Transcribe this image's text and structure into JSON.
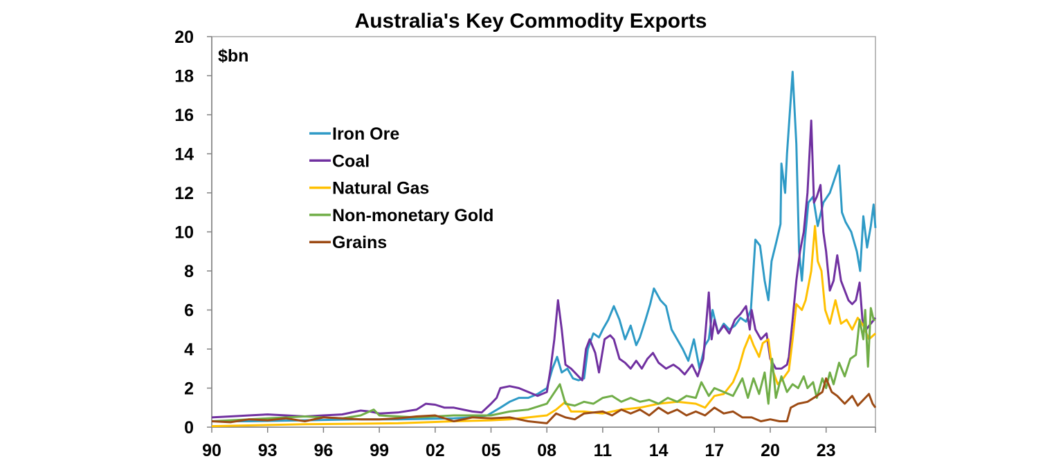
{
  "chart_data": {
    "type": "line",
    "title": "Australia's Key Commodity Exports",
    "ylabel": "$bn",
    "xlabel": "",
    "xlim": [
      1990,
      2025.65
    ],
    "ylim": [
      0,
      20
    ],
    "yticks": [
      0,
      2,
      4,
      6,
      8,
      10,
      12,
      14,
      16,
      18,
      20
    ],
    "xticks": [
      1990,
      1993,
      1996,
      1999,
      2002,
      2005,
      2008,
      2011,
      2014,
      2017,
      2020,
      2023
    ],
    "xtick_labels": [
      "90",
      "93",
      "96",
      "99",
      "02",
      "05",
      "08",
      "11",
      "14",
      "17",
      "20",
      "23"
    ],
    "grid": false,
    "legend_position": "upper-left",
    "series": [
      {
        "name": "Iron Ore",
        "color": "#2E9AC6",
        "x": [
          1990,
          1992,
          1995,
          1998,
          2000,
          2003,
          2004,
          2004.8,
          2005.5,
          2006,
          2006.5,
          2007,
          2007.5,
          2008,
          2008.3,
          2008.55,
          2008.8,
          2009.1,
          2009.4,
          2009.7,
          2010,
          2010.2,
          2010.5,
          2010.8,
          2011,
          2011.3,
          2011.6,
          2011.9,
          2012.2,
          2012.5,
          2012.8,
          2013,
          2013.3,
          2013.55,
          2013.75,
          2014.1,
          2014.4,
          2014.7,
          2015,
          2015.3,
          2015.6,
          2015.9,
          2016.2,
          2016.5,
          2016.7,
          2016.9,
          2017.2,
          2017.5,
          2017.8,
          2018.1,
          2018.4,
          2018.7,
          2018.96,
          2019.2,
          2019.45,
          2019.7,
          2019.9,
          2020.07,
          2020.33,
          2020.55,
          2020.6,
          2020.8,
          2020.9,
          2021.2,
          2021.4,
          2021.55,
          2021.7,
          2021.85,
          2022.05,
          2022.3,
          2022.55,
          2022.85,
          2023.2,
          2023.7,
          2023.85,
          2024.05,
          2024.35,
          2024.65,
          2024.83,
          2025.0,
          2025.2,
          2025.4,
          2025.55,
          2025.65
        ],
        "y": [
          0.3,
          0.3,
          0.35,
          0.4,
          0.4,
          0.45,
          0.5,
          0.6,
          1.0,
          1.3,
          1.5,
          1.5,
          1.7,
          2.0,
          3.0,
          3.6,
          2.8,
          3.0,
          2.5,
          2.4,
          2.5,
          4.0,
          4.8,
          4.6,
          5.0,
          5.5,
          6.2,
          5.5,
          4.5,
          5.2,
          4.2,
          4.6,
          5.5,
          6.3,
          7.1,
          6.5,
          6.2,
          5.0,
          4.5,
          4.0,
          3.4,
          4.5,
          3.0,
          4.2,
          4.5,
          6.0,
          4.8,
          5.3,
          5.0,
          5.2,
          5.6,
          5.4,
          6.0,
          9.6,
          9.3,
          7.5,
          6.5,
          8.5,
          9.5,
          10.4,
          13.5,
          12.0,
          14.0,
          18.2,
          14.5,
          9.0,
          7.5,
          9.5,
          11.5,
          11.8,
          10.3,
          11.5,
          12.0,
          13.4,
          11.0,
          10.5,
          10.0,
          9.0,
          8.0,
          10.8,
          9.2,
          10.3,
          11.4,
          10.2
        ]
      },
      {
        "name": "Coal",
        "color": "#7030A0",
        "x": [
          1990,
          1991,
          1992,
          1993,
          1994,
          1995,
          1996,
          1997,
          1998,
          1998.5,
          1999,
          2000,
          2001,
          2001.5,
          2002,
          2002.5,
          2003,
          2003.5,
          2004,
          2004.5,
          2005,
          2005.3,
          2005.5,
          2006,
          2006.5,
          2007,
          2007.5,
          2008,
          2008.2,
          2008.4,
          2008.6,
          2008.8,
          2009,
          2009.3,
          2009.6,
          2009.9,
          2010.1,
          2010.3,
          2010.6,
          2010.8,
          2011.1,
          2011.4,
          2011.6,
          2011.9,
          2012.2,
          2012.5,
          2012.8,
          2013.1,
          2013.4,
          2013.7,
          2014,
          2014.4,
          2014.8,
          2015.1,
          2015.4,
          2015.8,
          2016.1,
          2016.4,
          2016.7,
          2016.85,
          2017,
          2017.2,
          2017.5,
          2017.8,
          2018.1,
          2018.4,
          2018.7,
          2018.9,
          2019,
          2019.2,
          2019.5,
          2019.8,
          2020,
          2020.3,
          2020.6,
          2020.9,
          2021,
          2021.2,
          2021.4,
          2021.6,
          2021.8,
          2022,
          2022.2,
          2022.35,
          2022.5,
          2022.7,
          2022.85,
          2023,
          2023.2,
          2023.4,
          2023.6,
          2023.8,
          2024,
          2024.2,
          2024.4,
          2024.6,
          2024.8,
          2024.95,
          2025.15,
          2025.4,
          2025.65
        ],
        "y": [
          0.5,
          0.55,
          0.6,
          0.65,
          0.6,
          0.55,
          0.6,
          0.65,
          0.85,
          0.8,
          0.7,
          0.75,
          0.9,
          1.2,
          1.15,
          1.0,
          1.0,
          0.9,
          0.8,
          0.75,
          1.2,
          1.5,
          2.0,
          2.1,
          2.0,
          1.8,
          1.6,
          1.8,
          3.0,
          4.5,
          6.5,
          5.0,
          3.2,
          3.0,
          2.7,
          2.4,
          4.0,
          4.5,
          3.8,
          2.8,
          4.5,
          4.7,
          4.5,
          3.5,
          3.3,
          3.0,
          3.4,
          3.0,
          3.5,
          3.8,
          3.3,
          3.0,
          3.2,
          3.0,
          2.7,
          3.2,
          2.6,
          3.5,
          6.9,
          4.5,
          5.5,
          4.8,
          5.2,
          4.8,
          5.5,
          5.8,
          6.2,
          5.0,
          6.0,
          5.0,
          4.5,
          4.8,
          3.5,
          3.0,
          3.0,
          3.2,
          3.6,
          5.5,
          7.5,
          9.0,
          10.0,
          12.0,
          15.7,
          11.5,
          11.8,
          12.4,
          10.0,
          9.0,
          7.0,
          7.5,
          8.8,
          7.5,
          7.0,
          6.5,
          6.3,
          6.5,
          7.4,
          5.5,
          5.0,
          5.3,
          5.6
        ]
      },
      {
        "name": "Natural Gas",
        "color": "#FFC000",
        "x": [
          1990,
          1995,
          2000,
          2003,
          2005,
          2006,
          2007,
          2008,
          2008.5,
          2009,
          2009.3,
          2010,
          2011,
          2012,
          2013,
          2014,
          2015,
          2016,
          2016.5,
          2017,
          2017.5,
          2018,
          2018.3,
          2018.6,
          2018.9,
          2019.1,
          2019.4,
          2019.6,
          2019.9,
          2020.1,
          2020.4,
          2020.7,
          2021,
          2021.2,
          2021.4,
          2021.7,
          2021.9,
          2022.2,
          2022.4,
          2022.55,
          2022.75,
          2022.95,
          2023.2,
          2023.5,
          2023.8,
          2024.1,
          2024.4,
          2024.7,
          2025,
          2025.3,
          2025.65
        ],
        "y": [
          0.05,
          0.15,
          0.2,
          0.3,
          0.35,
          0.4,
          0.5,
          0.6,
          0.9,
          1.3,
          0.8,
          0.8,
          0.7,
          0.9,
          1.0,
          1.2,
          1.3,
          1.2,
          1.0,
          1.6,
          1.7,
          2.3,
          3.0,
          4.0,
          4.7,
          4.2,
          3.6,
          4.3,
          4.5,
          3.0,
          2.2,
          2.5,
          2.9,
          4.5,
          6.3,
          6.0,
          6.5,
          8.0,
          10.3,
          8.5,
          8.0,
          6.0,
          5.3,
          6.5,
          5.3,
          5.5,
          5.0,
          5.6,
          5.2,
          4.5,
          4.8
        ]
      },
      {
        "name": "Non-monetary Gold",
        "color": "#70AD47",
        "x": [
          1990,
          1991,
          1992,
          1993,
          1994,
          1995,
          1996,
          1997,
          1998,
          1998.7,
          1999,
          2000,
          2001,
          2002,
          2003,
          2004,
          2005,
          2006,
          2007,
          2008,
          2008.7,
          2009,
          2009.5,
          2010,
          2010.5,
          2011,
          2011.5,
          2012,
          2012.5,
          2013,
          2013.5,
          2014,
          2014.5,
          2015,
          2015.5,
          2016,
          2016.3,
          2016.7,
          2017,
          2017.5,
          2018,
          2018.5,
          2018.8,
          2019.1,
          2019.4,
          2019.7,
          2019.9,
          2020.1,
          2020.3,
          2020.6,
          2020.9,
          2021.2,
          2021.5,
          2021.8,
          2022,
          2022.3,
          2022.5,
          2022.8,
          2023,
          2023.2,
          2023.4,
          2023.7,
          2024,
          2024.3,
          2024.6,
          2024.8,
          2025,
          2025.1,
          2025.25,
          2025.4,
          2025.55,
          2025.65
        ],
        "y": [
          0.3,
          0.35,
          0.4,
          0.45,
          0.5,
          0.55,
          0.5,
          0.45,
          0.6,
          0.9,
          0.6,
          0.55,
          0.5,
          0.55,
          0.6,
          0.6,
          0.6,
          0.8,
          0.9,
          1.2,
          2.2,
          1.2,
          1.1,
          1.3,
          1.2,
          1.5,
          1.6,
          1.3,
          1.5,
          1.3,
          1.4,
          1.2,
          1.5,
          1.3,
          1.6,
          1.5,
          2.3,
          1.6,
          2.0,
          1.8,
          1.6,
          2.5,
          1.5,
          2.5,
          1.7,
          2.8,
          1.2,
          3.5,
          1.5,
          2.6,
          1.8,
          2.2,
          2.0,
          2.6,
          2.0,
          2.3,
          1.5,
          2.5,
          2.0,
          2.8,
          2.2,
          3.3,
          2.6,
          3.5,
          3.7,
          5.5,
          4.5,
          6.0,
          3.1,
          6.1,
          5.5,
          5.5
        ]
      },
      {
        "name": "Grains",
        "color": "#9C4A13",
        "x": [
          1990,
          1991,
          1992,
          1993,
          1994,
          1995,
          1996,
          1997,
          1998,
          1999,
          2000,
          2001,
          2002,
          2003,
          2004,
          2005,
          2006,
          2007,
          2008,
          2008.5,
          2009,
          2009.5,
          2010,
          2011,
          2011.5,
          2012,
          2012.5,
          2013,
          2013.5,
          2014,
          2014.5,
          2015,
          2015.5,
          2016,
          2016.5,
          2017,
          2017.5,
          2018,
          2018.5,
          2019,
          2019.5,
          2020,
          2020.5,
          2020.9,
          2021.1,
          2021.5,
          2022,
          2022.5,
          2022.8,
          2023,
          2023.3,
          2023.6,
          2024,
          2024.4,
          2024.7,
          2025,
          2025.3,
          2025.5,
          2025.65
        ],
        "y": [
          0.3,
          0.25,
          0.4,
          0.35,
          0.45,
          0.3,
          0.5,
          0.45,
          0.4,
          0.4,
          0.45,
          0.55,
          0.6,
          0.3,
          0.5,
          0.45,
          0.5,
          0.3,
          0.2,
          0.7,
          0.5,
          0.4,
          0.7,
          0.8,
          0.6,
          0.9,
          0.7,
          0.9,
          0.6,
          1.0,
          0.7,
          0.9,
          0.6,
          0.8,
          0.6,
          1.0,
          0.7,
          0.8,
          0.5,
          0.5,
          0.3,
          0.4,
          0.3,
          0.3,
          1.0,
          1.2,
          1.3,
          1.6,
          1.8,
          2.5,
          1.8,
          1.6,
          1.2,
          1.6,
          1.1,
          1.4,
          1.7,
          1.2,
          1.0
        ]
      }
    ]
  }
}
